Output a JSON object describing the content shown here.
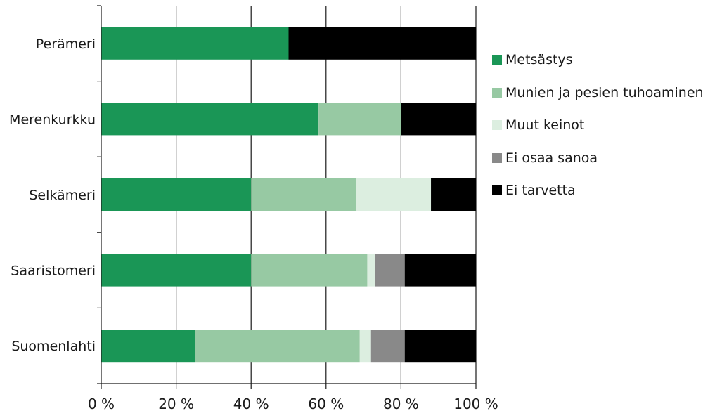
{
  "chart_data": {
    "type": "bar",
    "orientation": "horizontal",
    "stacked": true,
    "percent_scale": true,
    "categories": [
      "Perämeri",
      "Merenkurkku",
      "Selkämeri",
      "Saaristomeri",
      "Suomenlahti"
    ],
    "series": [
      {
        "name": "Metsästys",
        "color": "#1a9656",
        "values": [
          50,
          58,
          40,
          40,
          25
        ]
      },
      {
        "name": "Munien ja pesien tuhoaminen",
        "color": "#97c9a3",
        "values": [
          0,
          22,
          28,
          31,
          44
        ]
      },
      {
        "name": "Muut keinot",
        "color": "#dceee0",
        "values": [
          0,
          0,
          20,
          2,
          3
        ]
      },
      {
        "name": "Ei osaa sanoa",
        "color": "#898989",
        "values": [
          0,
          0,
          0,
          8,
          9
        ]
      },
      {
        "name": "Ei tarvetta",
        "color": "#000000",
        "values": [
          50,
          20,
          12,
          19,
          19
        ]
      }
    ],
    "xlim": [
      0,
      100
    ],
    "xticks": [
      0,
      20,
      40,
      60,
      80,
      100
    ],
    "xtick_labels": [
      "0 %",
      "20 %",
      "40 %",
      "60 %",
      "80 %",
      "100 %"
    ],
    "grid": true,
    "legend_position": "right"
  }
}
